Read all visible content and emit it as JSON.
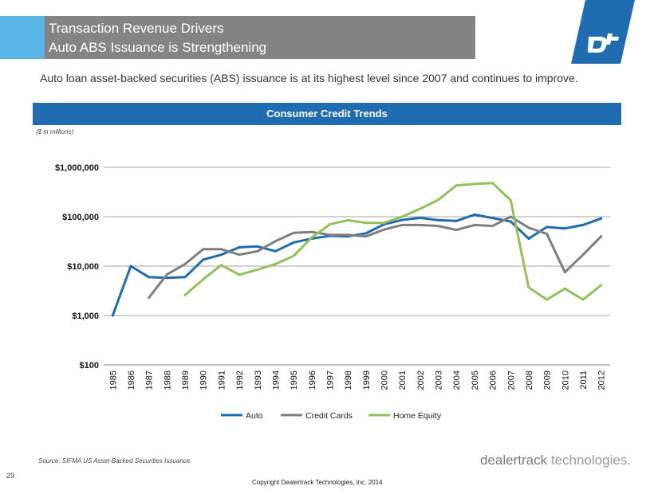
{
  "header": {
    "title_line1": "Transaction Revenue Drivers",
    "title_line2": "Auto ABS Issuance is Strengthening",
    "accent_color": "#5ab4e5",
    "bar_color": "#848484"
  },
  "logo": {
    "icon": "dealertrack-dt-logo-icon",
    "color": "#1f6cb0"
  },
  "intro_text": "Auto loan asset-backed securities (ABS) issuance is at its highest level since 2007 and continues to improve.",
  "banner": {
    "label": "Consumer Credit Trends",
    "color": "#1f6cb0"
  },
  "units_note": "($ in millions)",
  "chart_data": {
    "type": "line",
    "title": "",
    "xlabel": "",
    "ylabel": "",
    "y_scale": "log",
    "ylim": [
      100,
      1000000
    ],
    "y_ticks": [
      100,
      1000,
      10000,
      100000,
      1000000
    ],
    "y_tick_labels": [
      "$100",
      "$1,000",
      "$10,000",
      "$100,000",
      "$1,000,000"
    ],
    "grid": "horizontal",
    "legend_position": "bottom",
    "categories": [
      "1985",
      "1986",
      "1987",
      "1988",
      "1989",
      "1990",
      "1991",
      "1992",
      "1993",
      "1994",
      "1995",
      "1996",
      "1997",
      "1998",
      "1999",
      "2000",
      "2001",
      "2002",
      "2003",
      "2004",
      "2005",
      "2006",
      "2007",
      "2008",
      "2009",
      "2010",
      "2011",
      "2012"
    ],
    "series": [
      {
        "name": "Auto",
        "color": "#1f6cb0",
        "values": [
          1000,
          10000,
          6000,
          5800,
          6000,
          13500,
          17000,
          24000,
          25000,
          20000,
          30000,
          36000,
          41000,
          40000,
          46000,
          70000,
          86000,
          95000,
          85000,
          82000,
          110000,
          94000,
          80000,
          36000,
          62000,
          58000,
          68000,
          92000
        ]
      },
      {
        "name": "Credit Cards",
        "color": "#7f7f7f",
        "values": [
          null,
          null,
          2300,
          6800,
          11000,
          22000,
          22000,
          17000,
          20000,
          32000,
          47000,
          49000,
          43000,
          43000,
          40000,
          55000,
          68000,
          68000,
          65000,
          54000,
          68000,
          65000,
          100000,
          60000,
          45000,
          7500,
          17000,
          40000
        ]
      },
      {
        "name": "Home Equity",
        "color": "#92c05a",
        "values": [
          null,
          null,
          null,
          null,
          2600,
          5400,
          10500,
          6700,
          8500,
          11000,
          16000,
          38000,
          70000,
          85000,
          75000,
          75000,
          100000,
          145000,
          220000,
          430000,
          460000,
          480000,
          215000,
          3700,
          2100,
          3500,
          2100,
          4100
        ]
      }
    ]
  },
  "source_note": "Source: SIFMA US Asset-Backed Securities Issuance.",
  "page_number": "29",
  "copyright": "Copyright Dealertrack Technologies, Inc. 2014",
  "brand": {
    "word1": "dealertrack",
    "word2": "technologies."
  }
}
